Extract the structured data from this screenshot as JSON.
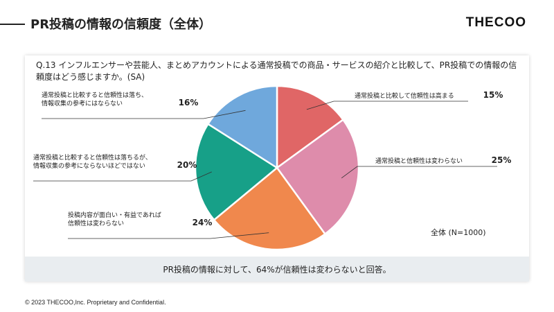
{
  "header": {
    "title": "PR投稿の情報の信頼度（全体）",
    "brand": "THECOO"
  },
  "question": "Q.13 インフルエンサーや芸能人、まとめアカウントによる通常投稿での商品・サービスの紹介と比較して、PR投稿での情報の信頼度はどう感じますか。(SA)",
  "chart_data": {
    "type": "pie",
    "title": "",
    "note": "全体 (N=1000)",
    "slices": [
      {
        "label": [
          "通常投稿と比較して信頼性は高まる"
        ],
        "value": 15,
        "value_label": "15%",
        "color": "#e06666"
      },
      {
        "label": [
          "通常投稿と信頼性は変わらない"
        ],
        "value": 25,
        "value_label": "25%",
        "color": "#de8cab"
      },
      {
        "label": [
          "投稿内容が面白い・有益であれば",
          "信頼性は変わらない"
        ],
        "value": 24,
        "value_label": "24%",
        "color": "#f0884d"
      },
      {
        "label": [
          "通常投稿と比較すると信頼性は落ちるが、",
          "情報収集の参考にならないほどではない"
        ],
        "value": 20,
        "value_label": "20%",
        "color": "#17a088"
      },
      {
        "label": [
          "通常投稿と比較すると信頼性は落ち、",
          "情報収集の参考にはならない"
        ],
        "value": 16,
        "value_label": "16%",
        "color": "#6fa8dc"
      }
    ]
  },
  "summary": "PR投稿の情報に対して、64%が信頼性は変わらないと回答。",
  "footer": "© 2023 THECOO,Inc. Proprietary and Confidential."
}
